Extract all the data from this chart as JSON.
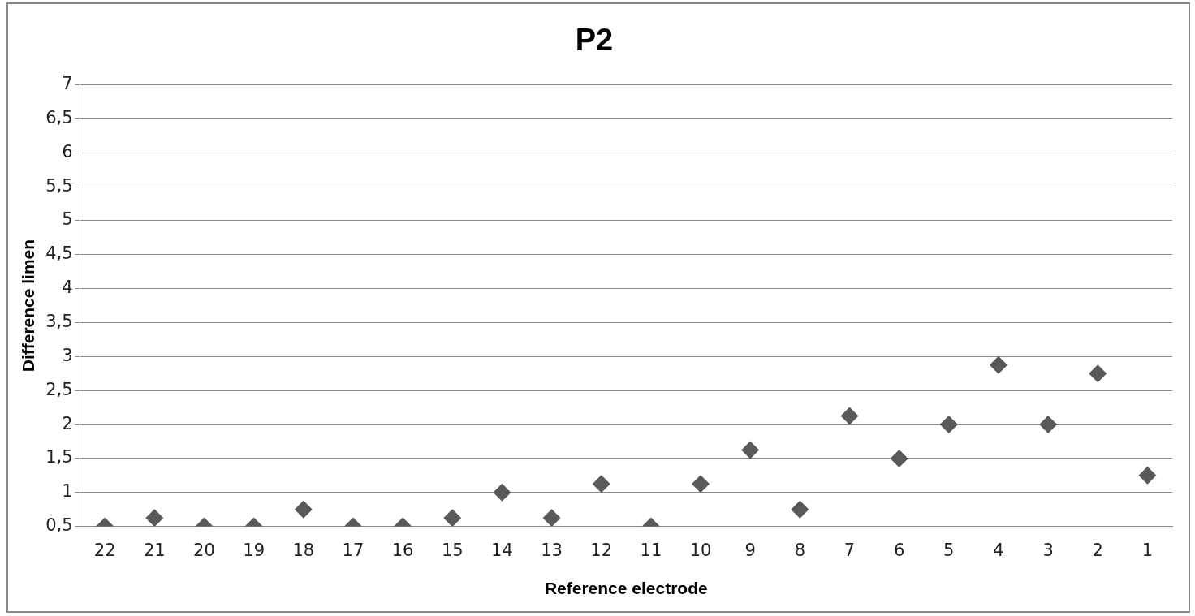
{
  "chart_data": {
    "type": "scatter",
    "title": "P2",
    "xlabel": "Reference electrode",
    "ylabel": "Difference limen",
    "categories": [
      "22",
      "21",
      "20",
      "19",
      "18",
      "17",
      "16",
      "15",
      "14",
      "13",
      "12",
      "11",
      "10",
      "9",
      "8",
      "7",
      "6",
      "5",
      "4",
      "3",
      "2",
      "1"
    ],
    "values": [
      0.5,
      0.625,
      0.5,
      0.5,
      0.75,
      0.5,
      0.5,
      0.625,
      1.0,
      0.625,
      1.125,
      0.5,
      1.125,
      1.625,
      0.75,
      2.125,
      1.5,
      2.0,
      2.875,
      2.0,
      2.75,
      1.25
    ],
    "color": "#595959",
    "marker": "diamond",
    "grid": "y",
    "legend": false,
    "ylim": [
      0.5,
      7
    ],
    "yticks": [
      {
        "value": 0.5,
        "label": "0,5"
      },
      1,
      {
        "value": 1.5,
        "label": "1,5"
      },
      2,
      {
        "value": 2.5,
        "label": "2,5"
      },
      3,
      {
        "value": 3.5,
        "label": "3,5"
      },
      4,
      {
        "value": 4.5,
        "label": "4,5"
      },
      5,
      {
        "value": 5.5,
        "label": "5,5"
      },
      6,
      {
        "value": 6.5,
        "label": "6,5"
      },
      7
    ]
  }
}
